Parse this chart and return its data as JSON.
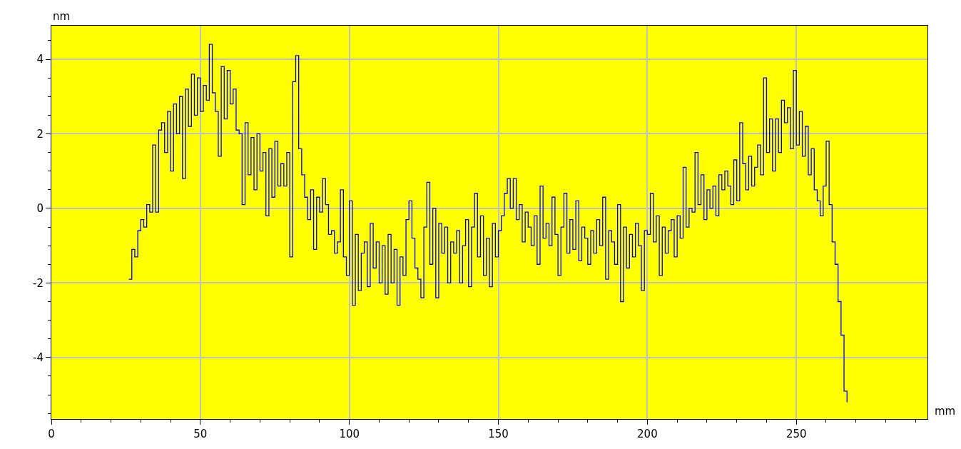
{
  "chart_data": {
    "type": "step",
    "xlabel": "mm",
    "ylabel": "nm",
    "xlim": [
      0,
      294
    ],
    "ylim": [
      -5.65,
      4.9
    ],
    "xticks": [
      0,
      50,
      100,
      150,
      200,
      250
    ],
    "yticks": [
      -4,
      -2,
      0,
      2,
      4
    ],
    "grid": true,
    "marker": "none",
    "line_style": "solid",
    "x": [
      26,
      27,
      28,
      29,
      30,
      31,
      32,
      33,
      34,
      35,
      36,
      37,
      38,
      39,
      40,
      41,
      42,
      43,
      44,
      45,
      46,
      47,
      48,
      49,
      50,
      51,
      52,
      53,
      54,
      55,
      56,
      57,
      58,
      59,
      60,
      61,
      62,
      63,
      64,
      65,
      66,
      67,
      68,
      69,
      70,
      71,
      72,
      73,
      74,
      75,
      76,
      77,
      78,
      79,
      80,
      81,
      82,
      83,
      84,
      85,
      86,
      87,
      88,
      89,
      90,
      91,
      92,
      93,
      94,
      95,
      96,
      97,
      98,
      99,
      100,
      101,
      102,
      103,
      104,
      105,
      106,
      107,
      108,
      109,
      110,
      111,
      112,
      113,
      114,
      115,
      116,
      117,
      118,
      119,
      120,
      121,
      122,
      123,
      124,
      125,
      126,
      127,
      128,
      129,
      130,
      131,
      132,
      133,
      134,
      135,
      136,
      137,
      138,
      139,
      140,
      141,
      142,
      143,
      144,
      145,
      146,
      147,
      148,
      149,
      150,
      151,
      152,
      153,
      154,
      155,
      156,
      157,
      158,
      159,
      160,
      161,
      162,
      163,
      164,
      165,
      166,
      167,
      168,
      169,
      170,
      171,
      172,
      173,
      174,
      175,
      176,
      177,
      178,
      179,
      180,
      181,
      182,
      183,
      184,
      185,
      186,
      187,
      188,
      189,
      190,
      191,
      192,
      193,
      194,
      195,
      196,
      197,
      198,
      199,
      200,
      201,
      202,
      203,
      204,
      205,
      206,
      207,
      208,
      209,
      210,
      211,
      212,
      213,
      214,
      215,
      216,
      217,
      218,
      219,
      220,
      221,
      222,
      223,
      224,
      225,
      226,
      227,
      228,
      229,
      230,
      231,
      232,
      233,
      234,
      235,
      236,
      237,
      238,
      239,
      240,
      241,
      242,
      243,
      244,
      245,
      246,
      247,
      248,
      249,
      250,
      251,
      252,
      253,
      254,
      255,
      256,
      257,
      258,
      259,
      260,
      261,
      262,
      263,
      264,
      265,
      266,
      267
    ],
    "series": [
      {
        "color": "#0000ff",
        "values": [
          -1.9,
          -1.1,
          -1.3,
          -0.6,
          -0.3,
          -0.5,
          0.1,
          -0.1,
          1.7,
          -0.1,
          2.1,
          2.3,
          1.5,
          2.6,
          1.0,
          2.8,
          2.0,
          3.0,
          0.8,
          3.2,
          2.2,
          3.6,
          2.5,
          3.5,
          2.6,
          3.3,
          2.9,
          4.4,
          3.1,
          2.6,
          1.4,
          3.8,
          2.4,
          3.7,
          2.8,
          3.2,
          2.1,
          2.0,
          0.1,
          2.3,
          0.9,
          1.9,
          0.5,
          2.0,
          1.0,
          1.5,
          -0.2,
          1.6,
          0.3,
          1.8,
          0.6,
          1.2,
          0.6,
          1.5,
          -1.3,
          3.4,
          4.1,
          1.6,
          0.9,
          0.3,
          -0.3,
          0.5,
          -1.1,
          0.3,
          -0.1,
          0.8,
          0.1,
          -0.7,
          -0.6,
          -1.2,
          -0.9,
          0.5,
          -1.3,
          -1.8,
          0.2,
          -2.6,
          -0.7,
          -2.2,
          -1.2,
          -0.9,
          -2.1,
          -0.4,
          -1.6,
          -0.9,
          -2.0,
          -1.0,
          -2.3,
          -0.7,
          -2.0,
          -1.1,
          -2.6,
          -1.3,
          -1.8,
          -0.3,
          0.2,
          -0.8,
          -1.6,
          -1.9,
          -2.4,
          -0.5,
          0.7,
          -1.5,
          0.0,
          -2.4,
          -0.4,
          -1.2,
          -0.5,
          -2.0,
          -0.9,
          -1.2,
          -0.6,
          -2.0,
          -1.0,
          -0.3,
          -2.1,
          -0.5,
          0.4,
          -1.3,
          -0.2,
          -1.8,
          -0.8,
          -2.1,
          -0.4,
          -1.3,
          -0.6,
          -0.2,
          0.4,
          0.8,
          0.0,
          0.8,
          -0.3,
          0.1,
          -0.9,
          -0.1,
          -0.5,
          -1.0,
          -0.2,
          -1.5,
          0.6,
          -0.8,
          -0.4,
          -1.0,
          0.3,
          -0.7,
          -1.8,
          -0.5,
          0.4,
          -1.2,
          -0.3,
          -1.1,
          0.2,
          -1.4,
          -0.5,
          -0.8,
          -1.5,
          -0.6,
          -1.2,
          -0.3,
          -1.0,
          0.3,
          -1.9,
          -0.6,
          -0.9,
          -1.5,
          0.1,
          -2.5,
          -0.5,
          -1.6,
          -0.7,
          -1.3,
          -0.4,
          -1.0,
          -2.2,
          -0.6,
          -0.7,
          0.4,
          -0.9,
          -0.2,
          -1.8,
          -0.5,
          -1.2,
          -0.6,
          -0.3,
          -1.3,
          -0.2,
          -0.8,
          1.1,
          -0.5,
          0.0,
          -0.1,
          1.5,
          0.1,
          0.9,
          -0.3,
          0.5,
          0.0,
          0.6,
          -0.2,
          0.9,
          0.5,
          1.0,
          0.6,
          0.1,
          1.3,
          0.2,
          2.3,
          1.2,
          0.5,
          1.4,
          0.6,
          1.1,
          1.7,
          0.9,
          3.5,
          1.5,
          2.4,
          1.0,
          2.4,
          1.5,
          2.9,
          2.3,
          2.7,
          1.6,
          3.7,
          1.7,
          2.6,
          1.4,
          2.2,
          0.9,
          1.6,
          0.5,
          0.2,
          -0.2,
          0.6,
          1.8,
          0.1,
          -0.9,
          -1.5,
          -2.5,
          -3.4,
          -4.9,
          -5.2
        ]
      }
    ]
  }
}
